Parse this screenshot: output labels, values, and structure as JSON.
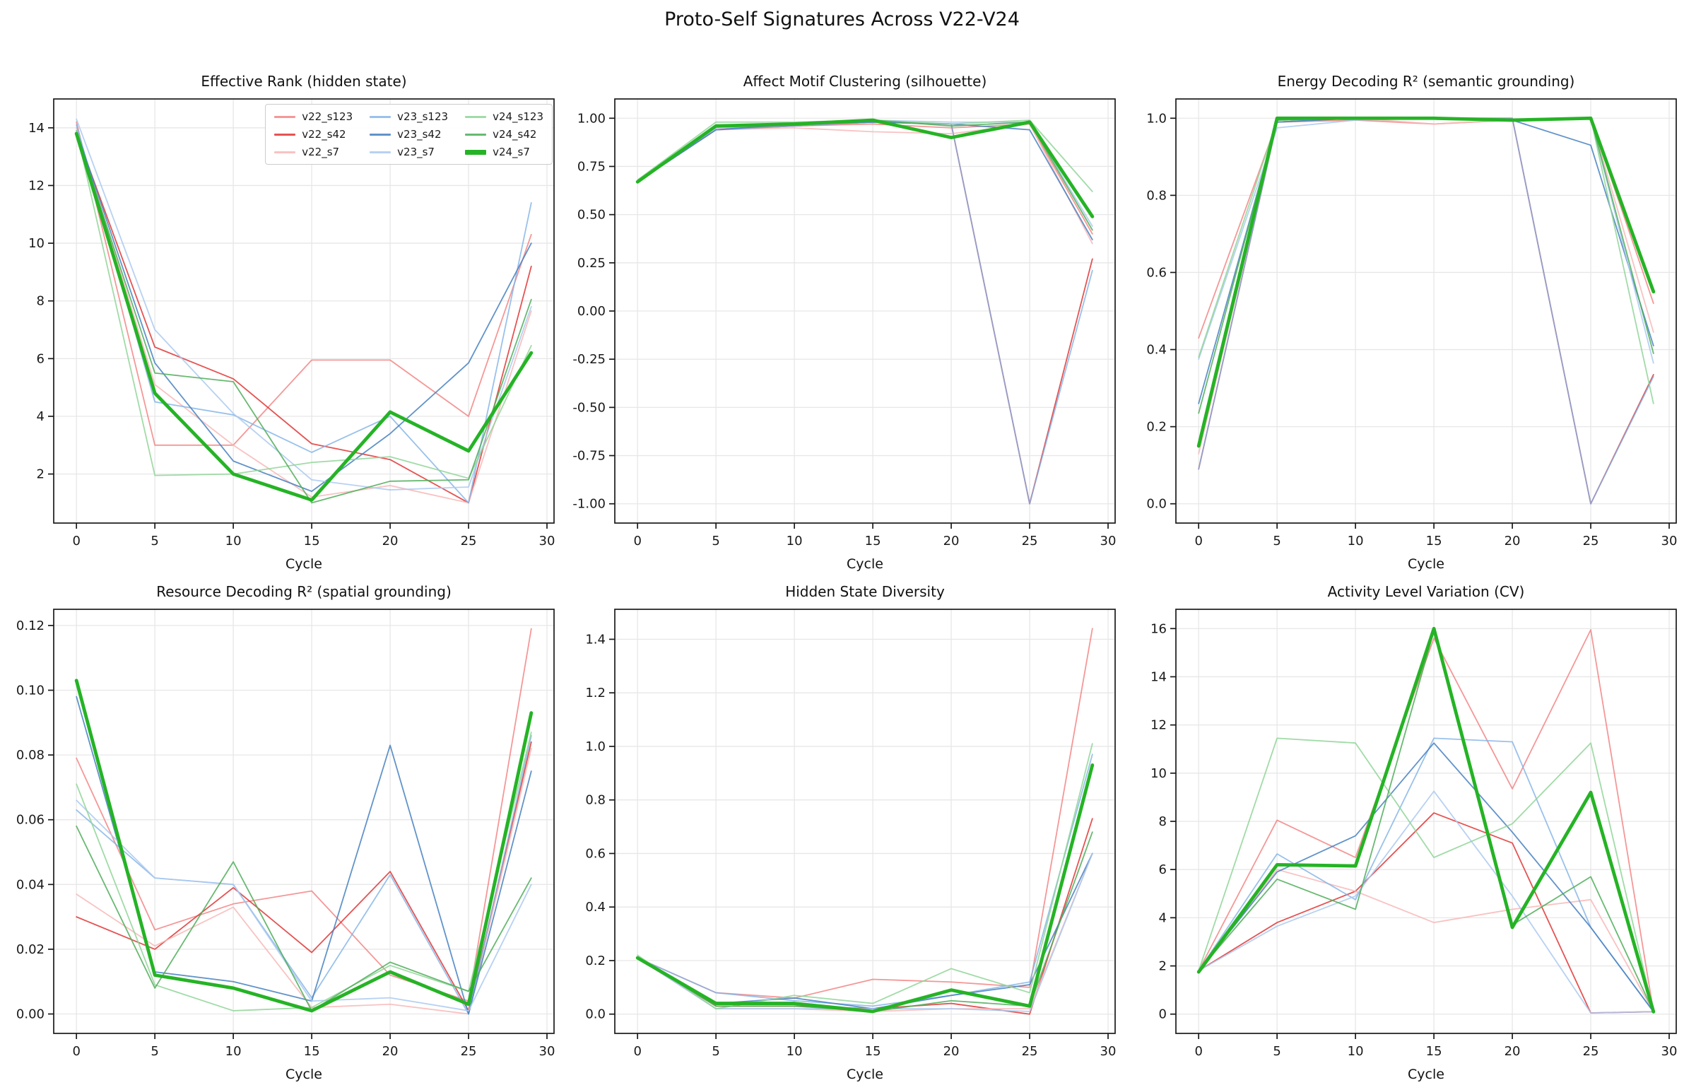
{
  "figure": {
    "title": "Proto-Self Signatures Across V22-V24"
  },
  "axis": {
    "xlabel": "Cycle"
  },
  "legend": {
    "entries": [
      "v22_s123",
      "v22_s42",
      "v22_s7",
      "v23_s123",
      "v23_s42",
      "v23_s7",
      "v24_s123",
      "v24_s42",
      "v24_s7"
    ]
  },
  "series_styles": {
    "v22_s123": {
      "color": "#f27d7d",
      "width": 1.8,
      "opacity": 0.8
    },
    "v22_s42": {
      "color": "#e03535",
      "width": 1.8,
      "opacity": 0.85
    },
    "v22_s7": {
      "color": "#f8b7b7",
      "width": 1.8,
      "opacity": 0.85
    },
    "v23_s123": {
      "color": "#7fb2e6",
      "width": 1.8,
      "opacity": 0.8
    },
    "v23_s42": {
      "color": "#4580c0",
      "width": 1.8,
      "opacity": 0.85
    },
    "v23_s7": {
      "color": "#aac9f0",
      "width": 1.8,
      "opacity": 0.85
    },
    "v24_s123": {
      "color": "#8fd596",
      "width": 1.8,
      "opacity": 0.85
    },
    "v24_s42": {
      "color": "#4ead58",
      "width": 1.8,
      "opacity": 0.85
    },
    "v24_s7": {
      "color": "#25b325",
      "width": 4.8,
      "opacity": 1.0
    }
  },
  "chart_data": [
    {
      "type": "line",
      "title": "Effective Rank (hidden state)",
      "xlabel": "Cycle",
      "x": [
        0,
        5,
        10,
        15,
        20,
        25,
        29
      ],
      "xticks": [
        0,
        5,
        10,
        15,
        20,
        25,
        30
      ],
      "xtick_labels": [
        "0",
        "5",
        "10",
        "15",
        "20",
        "25",
        "30"
      ],
      "xlim": [
        -1.45,
        30.45
      ],
      "yticks": [
        2,
        4,
        6,
        8,
        10,
        12,
        14
      ],
      "ytick_labels": [
        "2",
        "4",
        "6",
        "8",
        "10",
        "12",
        "14"
      ],
      "ylim": [
        0.3,
        15.0
      ],
      "grid": true,
      "legend_position": "upper right",
      "series": [
        {
          "name": "v22_s123",
          "values": [
            14.2,
            3.0,
            3.0,
            5.95,
            5.95,
            4.0,
            10.3
          ]
        },
        {
          "name": "v22_s42",
          "values": [
            13.8,
            6.4,
            5.3,
            3.05,
            2.5,
            1.0,
            9.2
          ]
        },
        {
          "name": "v22_s7",
          "values": [
            14.0,
            5.1,
            3.0,
            1.2,
            1.6,
            1.0,
            7.65
          ]
        },
        {
          "name": "v23_s123",
          "values": [
            14.1,
            4.5,
            4.05,
            2.75,
            4.0,
            1.0,
            11.4
          ]
        },
        {
          "name": "v23_s42",
          "values": [
            13.9,
            5.85,
            2.45,
            1.4,
            3.4,
            5.85,
            10.0
          ]
        },
        {
          "name": "v23_s7",
          "values": [
            14.3,
            7.0,
            4.1,
            1.8,
            1.45,
            1.55,
            7.8
          ]
        },
        {
          "name": "v24_s123",
          "values": [
            13.9,
            1.95,
            2.0,
            2.4,
            2.6,
            1.85,
            6.45
          ]
        },
        {
          "name": "v24_s42",
          "values": [
            13.8,
            5.5,
            5.2,
            1.0,
            1.75,
            1.8,
            8.05
          ]
        },
        {
          "name": "v24_s7",
          "values": [
            13.8,
            4.8,
            2.0,
            1.1,
            4.15,
            2.8,
            6.2
          ]
        }
      ]
    },
    {
      "type": "line",
      "title": "Affect Motif Clustering (silhouette)",
      "xlabel": "Cycle",
      "x": [
        0,
        5,
        10,
        15,
        20,
        25,
        29
      ],
      "xticks": [
        0,
        5,
        10,
        15,
        20,
        25,
        30
      ],
      "xtick_labels": [
        "0",
        "5",
        "10",
        "15",
        "20",
        "25",
        "30"
      ],
      "xlim": [
        -1.45,
        30.45
      ],
      "yticks": [
        -1.0,
        -0.75,
        -0.5,
        -0.25,
        0.0,
        0.25,
        0.5,
        0.75,
        1.0
      ],
      "ytick_labels": [
        "-1.00",
        "-0.75",
        "-0.50",
        "-0.25",
        "0.00",
        "0.25",
        "0.50",
        "0.75",
        "1.00"
      ],
      "ylim": [
        -1.1,
        1.1
      ],
      "grid": true,
      "series": [
        {
          "name": "v22_s123",
          "values": [
            0.67,
            0.95,
            0.96,
            0.97,
            0.95,
            0.97,
            0.4
          ]
        },
        {
          "name": "v22_s42",
          "values": [
            0.67,
            0.94,
            0.96,
            0.98,
            0.97,
            -1.0,
            0.27
          ]
        },
        {
          "name": "v22_s7",
          "values": [
            0.67,
            0.94,
            0.95,
            0.93,
            0.92,
            0.97,
            0.35
          ]
        },
        {
          "name": "v23_s123",
          "values": [
            0.67,
            0.94,
            0.96,
            0.98,
            0.97,
            -1.0,
            0.21
          ]
        },
        {
          "name": "v23_s42",
          "values": [
            0.67,
            0.94,
            0.97,
            0.98,
            0.97,
            0.94,
            0.37
          ]
        },
        {
          "name": "v23_s7",
          "values": [
            0.67,
            0.95,
            0.97,
            0.99,
            0.98,
            0.98,
            0.44
          ]
        },
        {
          "name": "v24_s123",
          "values": [
            0.68,
            0.98,
            0.98,
            0.99,
            0.97,
            0.99,
            0.62
          ]
        },
        {
          "name": "v24_s42",
          "values": [
            0.67,
            0.96,
            0.97,
            0.99,
            0.96,
            0.98,
            0.42
          ]
        },
        {
          "name": "v24_s7",
          "values": [
            0.67,
            0.96,
            0.97,
            0.99,
            0.9,
            0.98,
            0.49
          ]
        }
      ]
    },
    {
      "type": "line",
      "title": "Energy Decoding R² (semantic grounding)",
      "xlabel": "Cycle",
      "x": [
        0,
        5,
        10,
        15,
        20,
        25,
        29
      ],
      "xticks": [
        0,
        5,
        10,
        15,
        20,
        25,
        30
      ],
      "xtick_labels": [
        "0",
        "5",
        "10",
        "15",
        "20",
        "25",
        "30"
      ],
      "xlim": [
        -1.45,
        30.45
      ],
      "yticks": [
        0.0,
        0.2,
        0.4,
        0.6,
        0.8,
        1.0
      ],
      "ytick_labels": [
        "0.0",
        "0.2",
        "0.4",
        "0.6",
        "0.8",
        "1.0"
      ],
      "ylim": [
        -0.05,
        1.05
      ],
      "grid": true,
      "series": [
        {
          "name": "v22_s123",
          "values": [
            0.43,
            0.99,
            0.995,
            0.985,
            0.995,
            1.0,
            0.52
          ]
        },
        {
          "name": "v22_s42",
          "values": [
            0.09,
            0.99,
            1.0,
            1.0,
            1.0,
            0.0,
            0.335
          ]
        },
        {
          "name": "v22_s7",
          "values": [
            0.13,
            0.99,
            1.0,
            0.985,
            0.995,
            1.0,
            0.445
          ]
        },
        {
          "name": "v23_s123",
          "values": [
            0.09,
            0.99,
            1.0,
            1.0,
            1.0,
            0.0,
            0.33
          ]
        },
        {
          "name": "v23_s42",
          "values": [
            0.26,
            0.99,
            1.0,
            1.0,
            0.995,
            0.93,
            0.41
          ]
        },
        {
          "name": "v23_s7",
          "values": [
            0.375,
            0.975,
            0.995,
            1.0,
            0.995,
            1.0,
            0.365
          ]
        },
        {
          "name": "v24_s123",
          "values": [
            0.38,
            0.995,
            1.0,
            1.0,
            0.995,
            1.0,
            0.26
          ]
        },
        {
          "name": "v24_s42",
          "values": [
            0.235,
            0.995,
            1.0,
            1.0,
            0.995,
            1.0,
            0.39
          ]
        },
        {
          "name": "v24_s7",
          "values": [
            0.15,
            1.0,
            1.0,
            1.0,
            0.995,
            1.0,
            0.55
          ]
        }
      ]
    },
    {
      "type": "line",
      "title": "Resource Decoding R² (spatial grounding)",
      "xlabel": "Cycle",
      "x": [
        0,
        5,
        10,
        15,
        20,
        25,
        29
      ],
      "xticks": [
        0,
        5,
        10,
        15,
        20,
        25,
        30
      ],
      "xtick_labels": [
        "0",
        "5",
        "10",
        "15",
        "20",
        "25",
        "30"
      ],
      "xlim": [
        -1.45,
        30.45
      ],
      "yticks": [
        0.0,
        0.02,
        0.04,
        0.06,
        0.08,
        0.1,
        0.12
      ],
      "ytick_labels": [
        "0.00",
        "0.02",
        "0.04",
        "0.06",
        "0.08",
        "0.10",
        "0.12"
      ],
      "ylim": [
        -0.006,
        0.125
      ],
      "grid": true,
      "series": [
        {
          "name": "v22_s123",
          "values": [
            0.079,
            0.026,
            0.034,
            0.038,
            0.012,
            0.004,
            0.119
          ]
        },
        {
          "name": "v22_s42",
          "values": [
            0.03,
            0.02,
            0.039,
            0.019,
            0.044,
            0.001,
            0.084
          ]
        },
        {
          "name": "v22_s7",
          "values": [
            0.037,
            0.021,
            0.033,
            0.002,
            0.003,
            0.0,
            0.082
          ]
        },
        {
          "name": "v23_s123",
          "values": [
            0.063,
            0.042,
            0.04,
            0.005,
            0.043,
            0.0,
            0.086
          ]
        },
        {
          "name": "v23_s42",
          "values": [
            0.098,
            0.013,
            0.01,
            0.004,
            0.083,
            0.0,
            0.075
          ]
        },
        {
          "name": "v23_s7",
          "values": [
            0.066,
            0.042,
            0.04,
            0.004,
            0.005,
            0.001,
            0.04
          ]
        },
        {
          "name": "v24_s123",
          "values": [
            0.071,
            0.009,
            0.001,
            0.002,
            0.015,
            0.007,
            0.087
          ]
        },
        {
          "name": "v24_s42",
          "values": [
            0.058,
            0.008,
            0.047,
            0.001,
            0.016,
            0.007,
            0.042
          ]
        },
        {
          "name": "v24_s7",
          "values": [
            0.103,
            0.012,
            0.008,
            0.001,
            0.013,
            0.003,
            0.093
          ]
        }
      ]
    },
    {
      "type": "line",
      "title": "Hidden State Diversity",
      "xlabel": "Cycle",
      "x": [
        0,
        5,
        10,
        15,
        20,
        25,
        29
      ],
      "xticks": [
        0,
        5,
        10,
        15,
        20,
        25,
        30
      ],
      "xtick_labels": [
        "0",
        "5",
        "10",
        "15",
        "20",
        "25",
        "30"
      ],
      "xlim": [
        -1.45,
        30.45
      ],
      "yticks": [
        0.0,
        0.2,
        0.4,
        0.6,
        0.8,
        1.0,
        1.2,
        1.4
      ],
      "ytick_labels": [
        "0.0",
        "0.2",
        "0.4",
        "0.6",
        "0.8",
        "1.0",
        "1.2",
        "1.4"
      ],
      "ylim": [
        -0.072,
        1.512
      ],
      "grid": true,
      "series": [
        {
          "name": "v22_s123",
          "values": [
            0.21,
            0.08,
            0.06,
            0.13,
            0.12,
            0.1,
            1.44
          ]
        },
        {
          "name": "v22_s42",
          "values": [
            0.21,
            0.03,
            0.03,
            0.02,
            0.04,
            0.0,
            0.73
          ]
        },
        {
          "name": "v22_s7",
          "values": [
            0.21,
            0.02,
            0.02,
            0.01,
            0.02,
            0.02,
            0.6
          ]
        },
        {
          "name": "v23_s123",
          "values": [
            0.21,
            0.08,
            0.05,
            0.03,
            0.07,
            0.12,
            0.97
          ]
        },
        {
          "name": "v23_s42",
          "values": [
            0.21,
            0.04,
            0.06,
            0.02,
            0.07,
            0.11,
            0.6
          ]
        },
        {
          "name": "v23_s7",
          "values": [
            0.21,
            0.02,
            0.02,
            0.02,
            0.02,
            0.01,
            0.6
          ]
        },
        {
          "name": "v24_s123",
          "values": [
            0.22,
            0.02,
            0.07,
            0.04,
            0.17,
            0.08,
            1.01
          ]
        },
        {
          "name": "v24_s42",
          "values": [
            0.21,
            0.03,
            0.03,
            0.01,
            0.05,
            0.03,
            0.68
          ]
        },
        {
          "name": "v24_s7",
          "values": [
            0.21,
            0.04,
            0.04,
            0.01,
            0.09,
            0.03,
            0.93
          ]
        }
      ]
    },
    {
      "type": "line",
      "title": "Activity Level Variation (CV)",
      "xlabel": "Cycle",
      "x": [
        0,
        5,
        10,
        15,
        20,
        25,
        29
      ],
      "xticks": [
        0,
        5,
        10,
        15,
        20,
        25,
        30
      ],
      "xtick_labels": [
        "0",
        "5",
        "10",
        "15",
        "20",
        "25",
        "30"
      ],
      "xlim": [
        -1.45,
        30.45
      ],
      "yticks": [
        0,
        2,
        4,
        6,
        8,
        10,
        12,
        14,
        16
      ],
      "ytick_labels": [
        "0",
        "2",
        "4",
        "6",
        "8",
        "10",
        "12",
        "14",
        "16"
      ],
      "ylim": [
        -0.8,
        16.8
      ],
      "grid": true,
      "series": [
        {
          "name": "v22_s123",
          "values": [
            1.8,
            8.05,
            6.5,
            15.6,
            9.35,
            15.95,
            0.1
          ]
        },
        {
          "name": "v22_s42",
          "values": [
            1.8,
            3.8,
            5.1,
            8.35,
            7.1,
            0.05,
            0.1
          ]
        },
        {
          "name": "v22_s7",
          "values": [
            1.75,
            6.0,
            5.1,
            3.8,
            4.35,
            4.75,
            0.1
          ]
        },
        {
          "name": "v23_s123",
          "values": [
            1.8,
            6.65,
            4.75,
            11.45,
            11.3,
            3.6,
            0.1
          ]
        },
        {
          "name": "v23_s42",
          "values": [
            1.8,
            5.9,
            7.4,
            11.25,
            7.55,
            3.6,
            0.1
          ]
        },
        {
          "name": "v23_s7",
          "values": [
            1.8,
            3.65,
            4.9,
            9.25,
            4.9,
            0.05,
            0.1
          ]
        },
        {
          "name": "v24_s123",
          "values": [
            1.8,
            11.45,
            11.25,
            6.5,
            7.9,
            11.25,
            0.1
          ]
        },
        {
          "name": "v24_s42",
          "values": [
            1.8,
            5.6,
            4.35,
            15.9,
            3.7,
            5.7,
            0.1
          ]
        },
        {
          "name": "v24_s7",
          "values": [
            1.75,
            6.2,
            6.15,
            16.0,
            3.6,
            9.2,
            0.1
          ]
        }
      ]
    }
  ]
}
